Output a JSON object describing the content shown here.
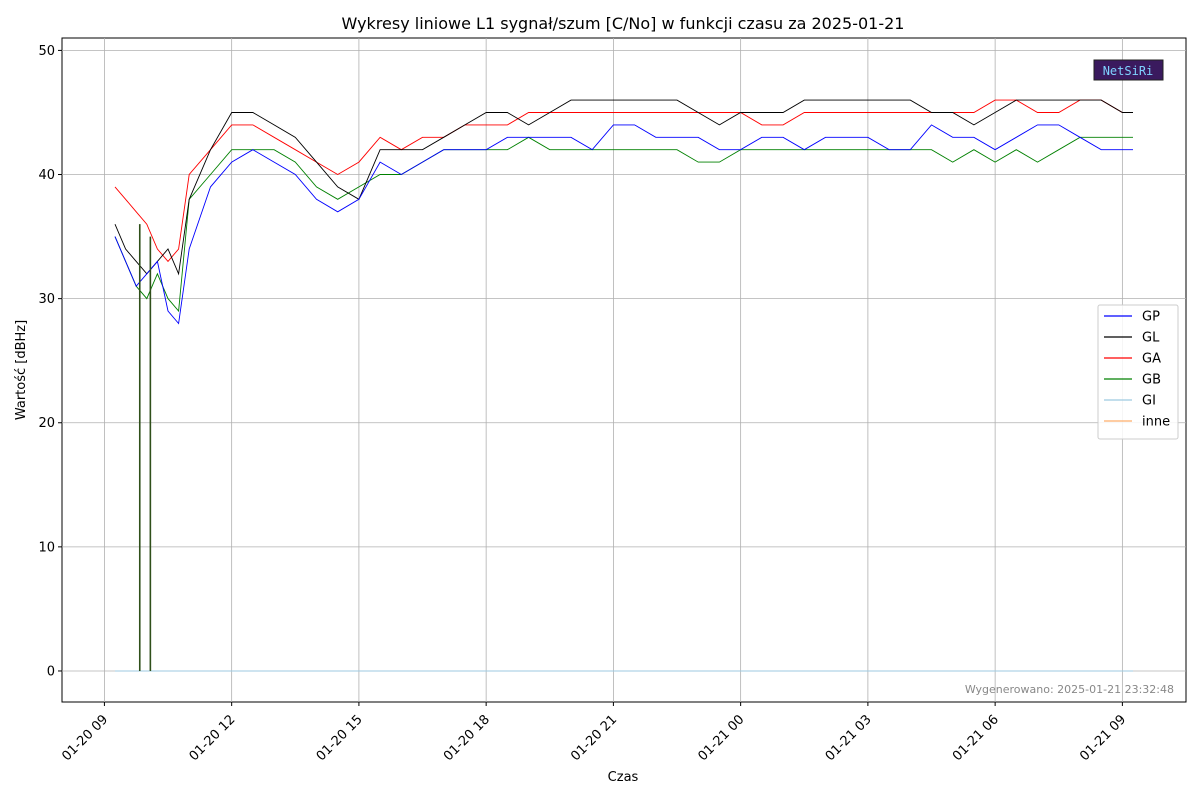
{
  "chart_data": {
    "type": "line",
    "title": "Wykresy liniowe L1 sygnał/szum [C/No] w funkcji czasu za 2025-01-21",
    "xlabel": "Czas",
    "ylabel": "Wartość [dBHz]",
    "x_ticks": [
      "01-20 09",
      "01-20 12",
      "01-20 15",
      "01-20 18",
      "01-20 21",
      "01-21 00",
      "01-21 03",
      "01-21 06",
      "01-21 09"
    ],
    "y_ticks": [
      0,
      10,
      20,
      30,
      40,
      50
    ],
    "xlim": [
      "2025-01-20 08:00",
      "2025-01-21 10:30"
    ],
    "ylim": [
      -2.5,
      51
    ],
    "grid": true,
    "legend_position": "right",
    "footnote": "Wygenerowano: 2025-01-21 23:32:48",
    "logo_text": "NetSiRi",
    "x": [
      "2025-01-20 09:15",
      "2025-01-20 09:30",
      "2025-01-20 09:45",
      "2025-01-20 10:00",
      "2025-01-20 10:15",
      "2025-01-20 10:30",
      "2025-01-20 10:45",
      "2025-01-20 11:00",
      "2025-01-20 11:30",
      "2025-01-20 12:00",
      "2025-01-20 12:30",
      "2025-01-20 13:00",
      "2025-01-20 13:30",
      "2025-01-20 14:00",
      "2025-01-20 14:30",
      "2025-01-20 15:00",
      "2025-01-20 15:30",
      "2025-01-20 16:00",
      "2025-01-20 16:30",
      "2025-01-20 17:00",
      "2025-01-20 17:30",
      "2025-01-20 18:00",
      "2025-01-20 18:30",
      "2025-01-20 19:00",
      "2025-01-20 19:30",
      "2025-01-20 20:00",
      "2025-01-20 20:30",
      "2025-01-20 21:00",
      "2025-01-20 21:30",
      "2025-01-20 22:00",
      "2025-01-20 22:30",
      "2025-01-20 23:00",
      "2025-01-20 23:30",
      "2025-01-21 00:00",
      "2025-01-21 00:30",
      "2025-01-21 01:00",
      "2025-01-21 01:30",
      "2025-01-21 02:00",
      "2025-01-21 02:30",
      "2025-01-21 03:00",
      "2025-01-21 03:30",
      "2025-01-21 04:00",
      "2025-01-21 04:30",
      "2025-01-21 05:00",
      "2025-01-21 05:30",
      "2025-01-21 06:00",
      "2025-01-21 06:30",
      "2025-01-21 07:00",
      "2025-01-21 07:30",
      "2025-01-21 08:00",
      "2025-01-21 08:30",
      "2025-01-21 09:00",
      "2025-01-21 09:15"
    ],
    "series": [
      {
        "name": "GP",
        "color": "#0000ff",
        "values": [
          35,
          33,
          31,
          32,
          33,
          29,
          28,
          34,
          39,
          41,
          42,
          41,
          40,
          38,
          37,
          38,
          41,
          40,
          41,
          42,
          42,
          42,
          43,
          43,
          43,
          43,
          42,
          44,
          44,
          43,
          43,
          43,
          42,
          42,
          43,
          43,
          42,
          43,
          43,
          43,
          42,
          42,
          44,
          43,
          43,
          42,
          43,
          44,
          44,
          43,
          42,
          42,
          42
        ]
      },
      {
        "name": "GL",
        "color": "#000000",
        "values": [
          36,
          34,
          33,
          32,
          33,
          34,
          32,
          38,
          42,
          45,
          45,
          44,
          43,
          41,
          39,
          38,
          42,
          42,
          42,
          43,
          44,
          45,
          45,
          44,
          45,
          46,
          46,
          46,
          46,
          46,
          46,
          45,
          44,
          45,
          45,
          45,
          46,
          46,
          46,
          46,
          46,
          46,
          45,
          45,
          44,
          45,
          46,
          46,
          46,
          46,
          46,
          45,
          45
        ]
      },
      {
        "name": "GA",
        "color": "#ff0000",
        "values": [
          39,
          38,
          37,
          36,
          34,
          33,
          34,
          40,
          42,
          44,
          44,
          43,
          42,
          41,
          40,
          41,
          43,
          42,
          43,
          43,
          44,
          44,
          44,
          45,
          45,
          45,
          45,
          45,
          45,
          45,
          45,
          45,
          45,
          45,
          44,
          44,
          45,
          45,
          45,
          45,
          45,
          45,
          45,
          45,
          45,
          46,
          46,
          45,
          45,
          46,
          46,
          45,
          45
        ]
      },
      {
        "name": "GB",
        "color": "#008000",
        "values": [
          35,
          33,
          31,
          30,
          32,
          30,
          29,
          38,
          40,
          42,
          42,
          42,
          41,
          39,
          38,
          39,
          40,
          40,
          41,
          42,
          42,
          42,
          42,
          43,
          42,
          42,
          42,
          42,
          42,
          42,
          42,
          41,
          41,
          42,
          42,
          42,
          42,
          42,
          42,
          42,
          42,
          42,
          42,
          41,
          42,
          41,
          42,
          41,
          42,
          43,
          43,
          43,
          43
        ]
      },
      {
        "name": "GI",
        "color": "#9ecae1",
        "values": [
          0,
          0,
          0,
          0,
          0,
          0,
          0,
          0,
          0,
          0,
          0,
          0,
          0,
          0,
          0,
          0,
          0,
          0,
          0,
          0,
          0,
          0,
          0,
          0,
          0,
          0,
          0,
          0,
          0,
          0,
          0,
          0,
          0,
          0,
          0,
          0,
          0,
          0,
          0,
          0,
          0,
          0,
          0,
          0,
          0,
          0,
          0,
          0,
          0,
          0,
          0,
          0,
          0
        ]
      },
      {
        "name": "inne",
        "color": "#fdae6b",
        "values": [
          0,
          0,
          0,
          0,
          0,
          0,
          0,
          0,
          0,
          0,
          0,
          0,
          0,
          0,
          0,
          0,
          0,
          0,
          0,
          0,
          0,
          0,
          0,
          0,
          0,
          0,
          0,
          0,
          0,
          0,
          0,
          0,
          0,
          0,
          0,
          0,
          0,
          0,
          0,
          0,
          0,
          0,
          0,
          0,
          0,
          0,
          0,
          0,
          0,
          0,
          0,
          0,
          0
        ]
      }
    ],
    "dropouts": [
      {
        "time": "2025-01-20 09:50",
        "from": 36,
        "to": 0
      },
      {
        "time": "2025-01-20 10:05",
        "from": 35,
        "to": 0
      }
    ]
  }
}
